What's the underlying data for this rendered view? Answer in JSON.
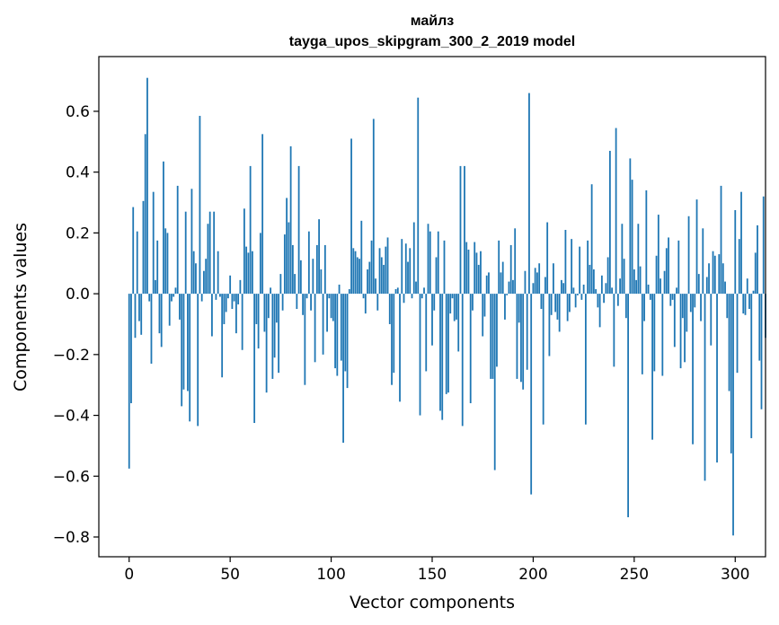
{
  "chart_data": {
    "type": "bar",
    "title": "майлз",
    "subtitle": "tayga_upos_skipgram_300_2_2019 model",
    "xlabel": "Vector components",
    "ylabel": "Components values",
    "xlim": [
      -15,
      315
    ],
    "ylim": [
      -0.865,
      0.78
    ],
    "xticks": [
      0,
      50,
      100,
      150,
      200,
      250,
      300
    ],
    "xtick_labels": [
      "0",
      "50",
      "100",
      "150",
      "200",
      "250",
      "300"
    ],
    "yticks": [
      -0.8,
      -0.6,
      -0.4,
      -0.2,
      0.0,
      0.2,
      0.4,
      0.6
    ],
    "ytick_labels": [
      "−0.8",
      "−0.6",
      "−0.4",
      "−0.2",
      "0.0",
      "0.2",
      "0.4",
      "0.6"
    ],
    "bar_color": "#1f77b4",
    "grid": false,
    "values": [
      -0.575,
      -0.36,
      0.285,
      -0.145,
      0.205,
      -0.09,
      -0.135,
      0.305,
      0.525,
      0.71,
      -0.025,
      -0.23,
      0.335,
      0.045,
      0.175,
      -0.13,
      -0.175,
      0.435,
      0.215,
      0.2,
      -0.105,
      -0.025,
      -0.01,
      0.02,
      0.355,
      -0.085,
      -0.37,
      -0.315,
      0.27,
      -0.32,
      -0.42,
      0.345,
      0.14,
      0.1,
      -0.435,
      0.585,
      -0.025,
      0.075,
      0.115,
      0.23,
      0.27,
      -0.14,
      0.27,
      -0.02,
      0.14,
      -0.01,
      -0.275,
      -0.1,
      -0.06,
      -0.015,
      0.06,
      -0.05,
      -0.025,
      -0.13,
      -0.035,
      0.045,
      -0.185,
      0.28,
      0.155,
      0.135,
      0.42,
      0.14,
      -0.425,
      -0.1,
      -0.18,
      0.2,
      0.525,
      -0.125,
      -0.325,
      -0.08,
      0.02,
      -0.28,
      -0.21,
      -0.095,
      -0.26,
      0.065,
      -0.055,
      0.195,
      0.315,
      0.235,
      0.485,
      0.16,
      0.065,
      -0.05,
      0.42,
      0.11,
      -0.07,
      -0.3,
      -0.015,
      0.205,
      -0.055,
      0.115,
      -0.225,
      0.16,
      0.245,
      0.08,
      -0.2,
      0.16,
      -0.125,
      -0.015,
      -0.08,
      -0.09,
      -0.245,
      -0.27,
      0.03,
      -0.22,
      -0.49,
      -0.255,
      -0.31,
      0.015,
      0.51,
      0.15,
      0.14,
      0.12,
      0.115,
      0.24,
      -0.015,
      -0.065,
      0.08,
      0.105,
      0.175,
      0.575,
      0.05,
      -0.055,
      0.15,
      0.12,
      0.095,
      0.155,
      0.185,
      -0.1,
      -0.3,
      -0.26,
      0.015,
      0.02,
      -0.355,
      0.18,
      -0.03,
      0.165,
      0.105,
      0.15,
      -0.015,
      0.235,
      0.04,
      0.645,
      -0.4,
      -0.015,
      0.02,
      -0.255,
      0.23,
      0.205,
      -0.17,
      -0.055,
      0.12,
      0.205,
      -0.385,
      -0.415,
      0.175,
      -0.33,
      -0.325,
      -0.065,
      -0.015,
      -0.09,
      -0.085,
      -0.19,
      0.42,
      -0.435,
      0.42,
      0.17,
      0.145,
      -0.36,
      -0.055,
      0.17,
      0.135,
      0.095,
      0.14,
      -0.14,
      -0.075,
      0.06,
      0.07,
      -0.28,
      -0.28,
      -0.58,
      -0.24,
      0.175,
      0.07,
      0.105,
      -0.085,
      -0.005,
      0.04,
      0.16,
      0.045,
      0.215,
      -0.28,
      -0.095,
      -0.29,
      -0.315,
      0.075,
      -0.25,
      0.66,
      -0.66,
      0.035,
      0.085,
      0.07,
      0.1,
      -0.05,
      -0.43,
      0.055,
      0.235,
      -0.205,
      -0.07,
      0.1,
      -0.06,
      -0.085,
      -0.125,
      0.045,
      0.035,
      0.21,
      -0.09,
      -0.06,
      0.18,
      0.02,
      -0.045,
      -0.005,
      0.155,
      -0.02,
      0.03,
      -0.43,
      0.175,
      0.095,
      0.36,
      0.08,
      0.015,
      -0.045,
      -0.11,
      0.06,
      -0.03,
      0.035,
      0.12,
      0.47,
      0.02,
      -0.24,
      0.545,
      -0.04,
      0.05,
      0.23,
      0.115,
      -0.08,
      -0.735,
      0.445,
      0.375,
      0.08,
      0.045,
      0.23,
      0.09,
      -0.265,
      -0.09,
      0.34,
      0.03,
      -0.02,
      -0.48,
      -0.255,
      0.125,
      0.26,
      0.05,
      -0.27,
      0.075,
      0.15,
      0.185,
      -0.04,
      -0.02,
      -0.175,
      0.02,
      0.175,
      -0.245,
      -0.08,
      -0.225,
      -0.125,
      0.255,
      -0.06,
      -0.495,
      -0.045,
      0.31,
      0.065,
      -0.09,
      0.215,
      -0.615,
      0.055,
      0.1,
      -0.17,
      0.14,
      0.125,
      -0.555,
      0.13,
      0.355,
      0.1,
      0.04,
      -0.08,
      -0.32,
      -0.525,
      -0.795,
      0.275,
      -0.26,
      0.18,
      0.335,
      -0.065,
      -0.07,
      0.05,
      -0.05,
      -0.475,
      0.01,
      0.135,
      0.225,
      -0.22,
      -0.38,
      0.32,
      -0.145
    ]
  }
}
